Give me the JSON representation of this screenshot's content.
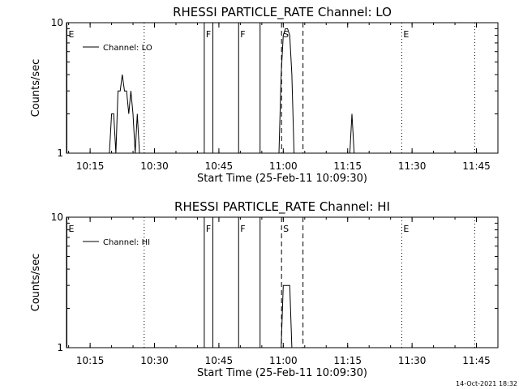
{
  "timestamp": "14-Oct-2021 18:32",
  "colors": {
    "background": "#ffffff",
    "foreground": "#000000"
  },
  "chart_data": [
    {
      "type": "line",
      "title": "RHESSI PARTICLE_RATE Channel: LO",
      "xlabel": "Start Time (25-Feb-11 10:09:30)",
      "ylabel": "Counts/sec",
      "xlim": [
        "10:09:30",
        "11:50:00"
      ],
      "ylim": [
        1,
        10
      ],
      "y_scale": "log",
      "x_ticks": [
        "10:15",
        "10:30",
        "10:45",
        "11:00",
        "11:15",
        "11:30",
        "11:45"
      ],
      "y_ticks": [
        "1",
        "10"
      ],
      "legend": {
        "label": "Channel: LO",
        "position": "top-left"
      },
      "series": [
        {
          "name": "Channel: LO",
          "points": [
            [
              "10:19:30",
              1
            ],
            [
              "10:20:00",
              2
            ],
            [
              "10:20:30",
              2
            ],
            [
              "10:21:00",
              1
            ],
            [
              "10:21:30",
              3
            ],
            [
              "10:22:00",
              3
            ],
            [
              "10:22:30",
              4
            ],
            [
              "10:23:00",
              3
            ],
            [
              "10:23:30",
              3
            ],
            [
              "10:24:00",
              2
            ],
            [
              "10:24:30",
              3
            ],
            [
              "10:25:00",
              2
            ],
            [
              "10:25:30",
              1
            ],
            [
              "10:26:00",
              2
            ],
            [
              "10:26:30",
              1
            ],
            [
              "10:59:00",
              1
            ],
            [
              "10:59:30",
              4
            ],
            [
              "11:00:00",
              8
            ],
            [
              "11:00:30",
              9
            ],
            [
              "11:01:00",
              9
            ],
            [
              "11:01:30",
              8
            ],
            [
              "11:02:00",
              4
            ],
            [
              "11:02:30",
              1
            ],
            [
              "11:15:30",
              1
            ],
            [
              "11:16:00",
              2
            ],
            [
              "11:16:30",
              1
            ]
          ]
        }
      ],
      "events": [
        {
          "label": "E",
          "time": "10:09:30",
          "line": "solid"
        },
        {
          "label": "",
          "time": "10:27:30",
          "line": "dotted"
        },
        {
          "label": "F",
          "time": "10:41:30",
          "line": "solid"
        },
        {
          "label": "",
          "time": "10:43:30",
          "line": "solid"
        },
        {
          "label": "F",
          "time": "10:49:30",
          "line": "solid"
        },
        {
          "label": "",
          "time": "10:54:30",
          "line": "solid"
        },
        {
          "label": "S",
          "time": "10:59:30",
          "line": "dashed"
        },
        {
          "label": "",
          "time": "11:04:30",
          "line": "dashed"
        },
        {
          "label": "E",
          "time": "11:27:30",
          "line": "dotted"
        },
        {
          "label": "",
          "time": "11:44:30",
          "line": "dotted"
        }
      ]
    },
    {
      "type": "line",
      "title": "RHESSI PARTICLE_RATE Channel: HI",
      "xlabel": "Start Time (25-Feb-11 10:09:30)",
      "ylabel": "Counts/sec",
      "xlim": [
        "10:09:30",
        "11:50:00"
      ],
      "ylim": [
        1,
        10
      ],
      "y_scale": "log",
      "x_ticks": [
        "10:15",
        "10:30",
        "10:45",
        "11:00",
        "11:15",
        "11:30",
        "11:45"
      ],
      "y_ticks": [
        "1",
        "10"
      ],
      "legend": {
        "label": "Channel: HI",
        "position": "top-left"
      },
      "series": [
        {
          "name": "Channel: HI",
          "points": [
            [
              "10:59:30",
              1
            ],
            [
              "11:00:00",
              3
            ],
            [
              "11:00:30",
              3
            ],
            [
              "11:01:00",
              3
            ],
            [
              "11:01:30",
              3
            ],
            [
              "11:02:00",
              1
            ]
          ]
        }
      ],
      "events": [
        {
          "label": "E",
          "time": "10:09:30",
          "line": "solid"
        },
        {
          "label": "",
          "time": "10:27:30",
          "line": "dotted"
        },
        {
          "label": "F",
          "time": "10:41:30",
          "line": "solid"
        },
        {
          "label": "",
          "time": "10:43:30",
          "line": "solid"
        },
        {
          "label": "F",
          "time": "10:49:30",
          "line": "solid"
        },
        {
          "label": "",
          "time": "10:54:30",
          "line": "solid"
        },
        {
          "label": "S",
          "time": "10:59:30",
          "line": "dashed"
        },
        {
          "label": "",
          "time": "11:04:30",
          "line": "dashed"
        },
        {
          "label": "E",
          "time": "11:27:30",
          "line": "dotted"
        },
        {
          "label": "",
          "time": "11:44:30",
          "line": "dotted"
        }
      ]
    }
  ]
}
